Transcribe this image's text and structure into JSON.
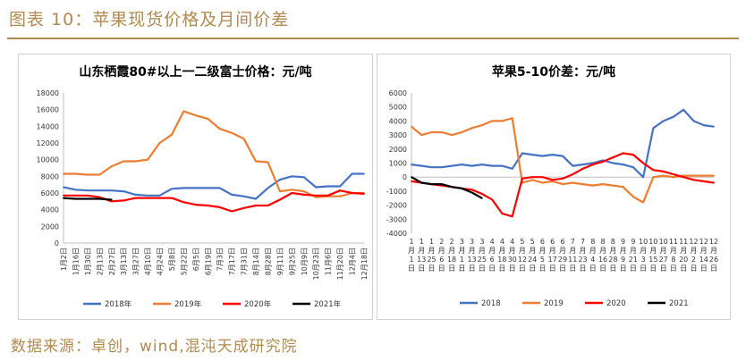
{
  "figure": {
    "title": "图表 10：苹果现货价格及月间价差",
    "source": "数据来源：卓创，wind,混沌天成研究院"
  },
  "colors": {
    "accent": "#b08a4f",
    "s2018": "#4472c4",
    "s2019": "#ed7d31",
    "s2020": "#ff0000",
    "s2021": "#000000"
  },
  "chart_data": [
    {
      "type": "line",
      "title": "山东栖霞80#以上一二级富士价格：元/吨",
      "x_unit": "date (month/day)",
      "categories": [
        "1月2日",
        "1月16日",
        "1月30日",
        "2月13日",
        "2月27日",
        "3月13日",
        "3月27日",
        "4月10日",
        "4月24日",
        "5月8日",
        "5月22日",
        "6月5日",
        "6月19日",
        "7月3日",
        "7月17日",
        "7月31日",
        "8月14日",
        "8月28日",
        "9月11日",
        "9月25日",
        "10月9日",
        "10月23日",
        "11月6日",
        "11月20日",
        "12月4日",
        "12月18日"
      ],
      "x_tick_labels": [
        "1月2日",
        "1月16日",
        "1月30日",
        "2月13日",
        "2月27日",
        "3月13日",
        "3月27日",
        "4月10日",
        "4月24日",
        "5月8日",
        "5月22日",
        "6月5日",
        "6月19日",
        "7月3日",
        "7月17日",
        "7月31日",
        "8月14日",
        "8月28日",
        "9月11日",
        "9月25日",
        "10月9日",
        "10月23日",
        "11月6日",
        "11月20日",
        "12月4日",
        "12月18日"
      ],
      "ylim": [
        0,
        18000
      ],
      "y_ticks": [
        0,
        2000,
        4000,
        6000,
        8000,
        10000,
        12000,
        14000,
        16000,
        18000
      ],
      "grid": false,
      "legend_position": "bottom",
      "series": [
        {
          "name": "2018年",
          "color_key": "s2018",
          "values": [
            6700,
            6400,
            6300,
            6300,
            6300,
            6200,
            5800,
            5700,
            5700,
            6500,
            6600,
            6600,
            6600,
            6600,
            5800,
            5600,
            5300,
            6600,
            7600,
            8000,
            7900,
            6700,
            6800,
            6800,
            8300,
            8300
          ]
        },
        {
          "name": "2019年",
          "color_key": "s2019",
          "values": [
            8300,
            8300,
            8200,
            8200,
            9200,
            9800,
            9800,
            10000,
            12000,
            13000,
            15800,
            15300,
            14900,
            13700,
            13200,
            12500,
            9800,
            9700,
            6200,
            6400,
            6200,
            5500,
            5600,
            5600,
            6000,
            6000
          ]
        },
        {
          "name": "2020年",
          "color_key": "s2020",
          "values": [
            5700,
            5700,
            5700,
            5500,
            5000,
            5100,
            5400,
            5400,
            5400,
            5400,
            4900,
            4600,
            4500,
            4300,
            3800,
            4200,
            4500,
            4500,
            5200,
            6000,
            5800,
            5700,
            5700,
            6300,
            6000,
            5900
          ]
        },
        {
          "name": "2021年",
          "color_key": "s2021",
          "values": [
            5400,
            5300,
            5300,
            5300,
            5200,
            null,
            null,
            null,
            null,
            null,
            null,
            null,
            null,
            null,
            null,
            null,
            null,
            null,
            null,
            null,
            null,
            null,
            null,
            null,
            null,
            null
          ]
        }
      ]
    },
    {
      "type": "line",
      "title": "苹果5-10价差：元/吨",
      "x_unit": "date (month/day)",
      "categories": [
        "1月1日",
        "1月13日",
        "1月25日",
        "2月6日",
        "2月18日",
        "3月1日",
        "3月13日",
        "3月25日",
        "4月6日",
        "4月18日",
        "4月30日",
        "5月12日",
        "5月24日",
        "6月5日",
        "6月17日",
        "6月29日",
        "7月11日",
        "7月23日",
        "8月4日",
        "8月16日",
        "8月28日",
        "9月9日",
        "9月21日",
        "10月3日",
        "10月15日",
        "10月27日",
        "11月8日",
        "11月20日",
        "12月2日",
        "12月14日",
        "12月26日"
      ],
      "x_tick_labels": [
        "1月1日",
        "1月13日",
        "1月25日",
        "2月6日",
        "2月18日",
        "3月1日",
        "3月13日",
        "3月25日",
        "4月6日",
        "4月18日",
        "4月30日",
        "5月12日",
        "5月24日",
        "6月5日",
        "6月17日",
        "6月29日",
        "7月11日",
        "7月23日",
        "8月4日",
        "8月16日",
        "8月28日",
        "9月9日",
        "9月21日",
        "10月3日",
        "10月15日",
        "10月27日",
        "11月8日",
        "11月20日",
        "12月2日",
        "12月14日",
        "12月26日"
      ],
      "ylim": [
        -4000,
        6000
      ],
      "y_ticks": [
        -4000,
        -3000,
        -2000,
        -1000,
        0,
        1000,
        2000,
        3000,
        4000,
        5000,
        6000
      ],
      "grid": false,
      "legend_position": "bottom",
      "series": [
        {
          "name": "2018",
          "color_key": "s2018",
          "values": [
            900,
            800,
            700,
            700,
            800,
            900,
            800,
            900,
            800,
            800,
            600,
            1700,
            1600,
            1500,
            1600,
            1500,
            800,
            900,
            1000,
            1200,
            1000,
            900,
            700,
            0,
            3500,
            4000,
            4300,
            4800,
            4000,
            3700,
            3600
          ]
        },
        {
          "name": "2019",
          "color_key": "s2019",
          "values": [
            3600,
            3000,
            3200,
            3200,
            3000,
            3200,
            3500,
            3700,
            4000,
            4000,
            4200,
            -400,
            -200,
            -400,
            -300,
            -500,
            -400,
            -500,
            -600,
            -500,
            -600,
            -700,
            -1400,
            -1800,
            0,
            100,
            0,
            100,
            100,
            100,
            100
          ]
        },
        {
          "name": "2020",
          "color_key": "s2020",
          "values": [
            -300,
            -400,
            -500,
            -600,
            -700,
            -800,
            -900,
            -1200,
            -1600,
            -2600,
            -2800,
            -100,
            0,
            0,
            -200,
            -100,
            200,
            600,
            900,
            1100,
            1400,
            1700,
            1600,
            1000,
            500,
            400,
            200,
            0,
            -200,
            -300,
            -400
          ]
        },
        {
          "name": "2021",
          "color_key": "s2021",
          "values": [
            0,
            -400,
            -500,
            -500,
            -700,
            -800,
            -1100,
            -1500,
            null,
            null,
            null,
            null,
            null,
            null,
            null,
            null,
            null,
            null,
            null,
            null,
            null,
            null,
            null,
            null,
            null,
            null,
            null,
            null,
            null,
            null,
            null
          ]
        }
      ]
    }
  ]
}
